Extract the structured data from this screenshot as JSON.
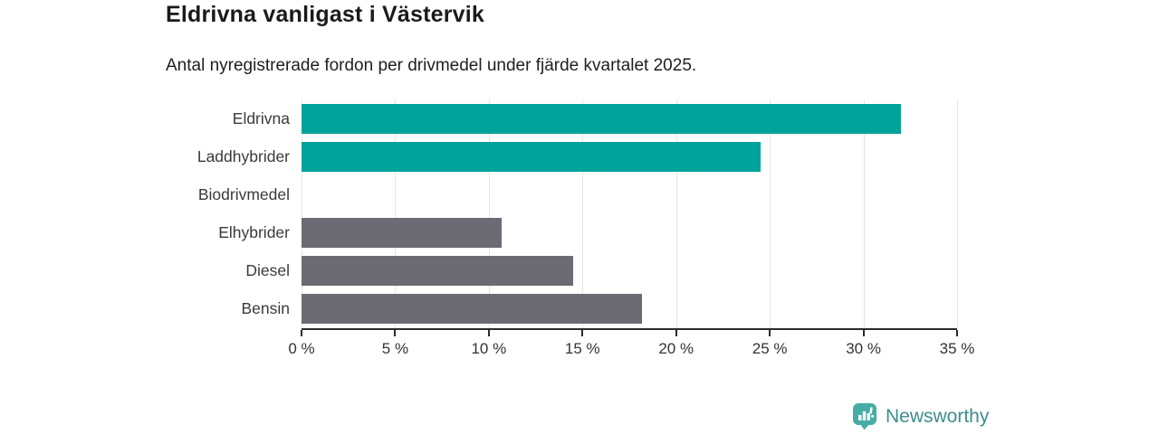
{
  "chart_data": {
    "type": "bar",
    "orientation": "horizontal",
    "title": "Eldrivna vanligast i Västervik",
    "subtitle": "Antal nyregistrerade fordon per drivmedel under fjärde kvartalet 2025.",
    "categories": [
      "Eldrivna",
      "Laddhybrider",
      "Biodrivmedel",
      "Elhybrider",
      "Diesel",
      "Bensin"
    ],
    "values": [
      32,
      24.5,
      0,
      10.7,
      14.5,
      18.2
    ],
    "unit": "%",
    "xlim": [
      0,
      35
    ],
    "xticks": [
      0,
      5,
      10,
      15,
      20,
      25,
      30,
      35
    ],
    "xtick_labels": [
      "0 %",
      "5 %",
      "10 %",
      "15 %",
      "20 %",
      "25 %",
      "30 %",
      "35 %"
    ],
    "bar_colors": [
      "#00a39a",
      "#00a39a",
      "#6c6b73",
      "#6c6b73",
      "#6c6b73",
      "#6c6b73"
    ],
    "grid": "vertical",
    "gridline_color": "#e6e6e6",
    "legend": null
  },
  "colors": {
    "accent_teal": "#00a39a",
    "neutral_gray": "#6c6b73",
    "axis_line": "#2b2b2b"
  },
  "footer": {
    "brand": "Newsworthy",
    "logo_icon": "speech-bubble-bar-chart-icon",
    "logo_color": "#45ada3",
    "text_color": "#3d8e8e"
  }
}
